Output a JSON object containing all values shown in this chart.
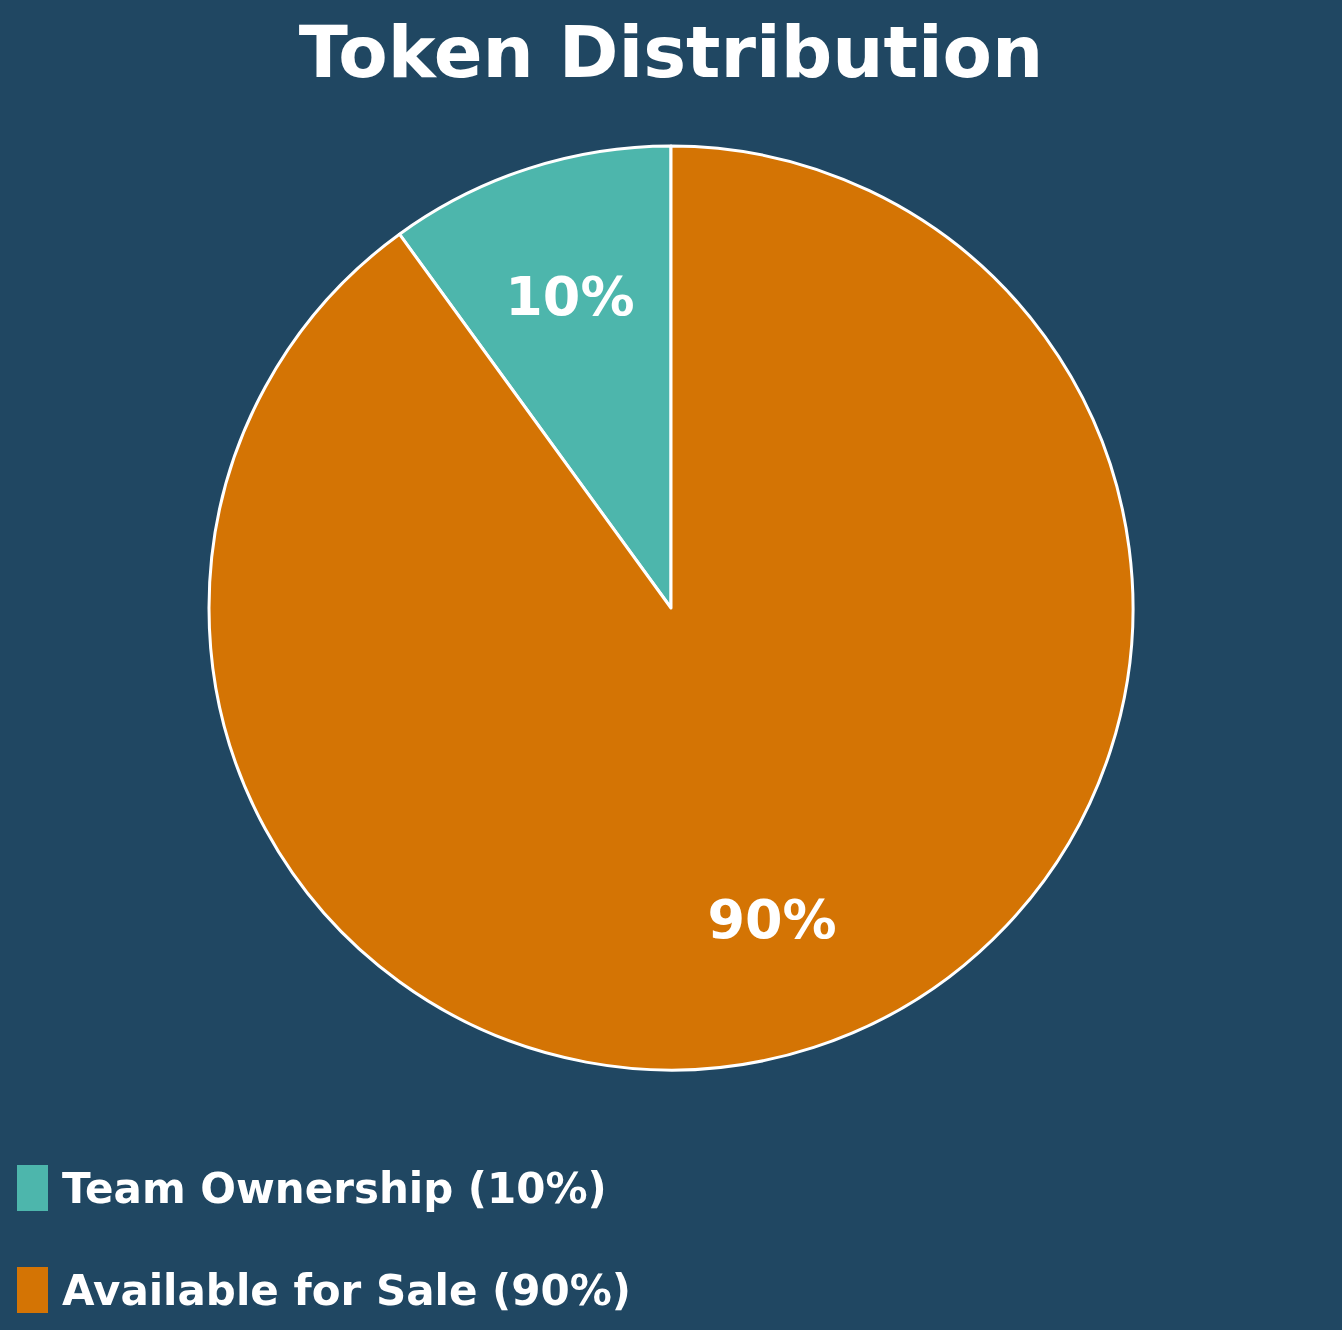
{
  "chart_data": {
    "type": "pie",
    "title": "Token Distribution",
    "categories": [
      "Team Ownership (10%)",
      "Available for Sale (90%)"
    ],
    "values": [
      10,
      90
    ],
    "colors": [
      "#4db6ac",
      "#d47404"
    ],
    "value_labels": [
      "10%",
      "90%"
    ],
    "legend": "bottom left"
  }
}
